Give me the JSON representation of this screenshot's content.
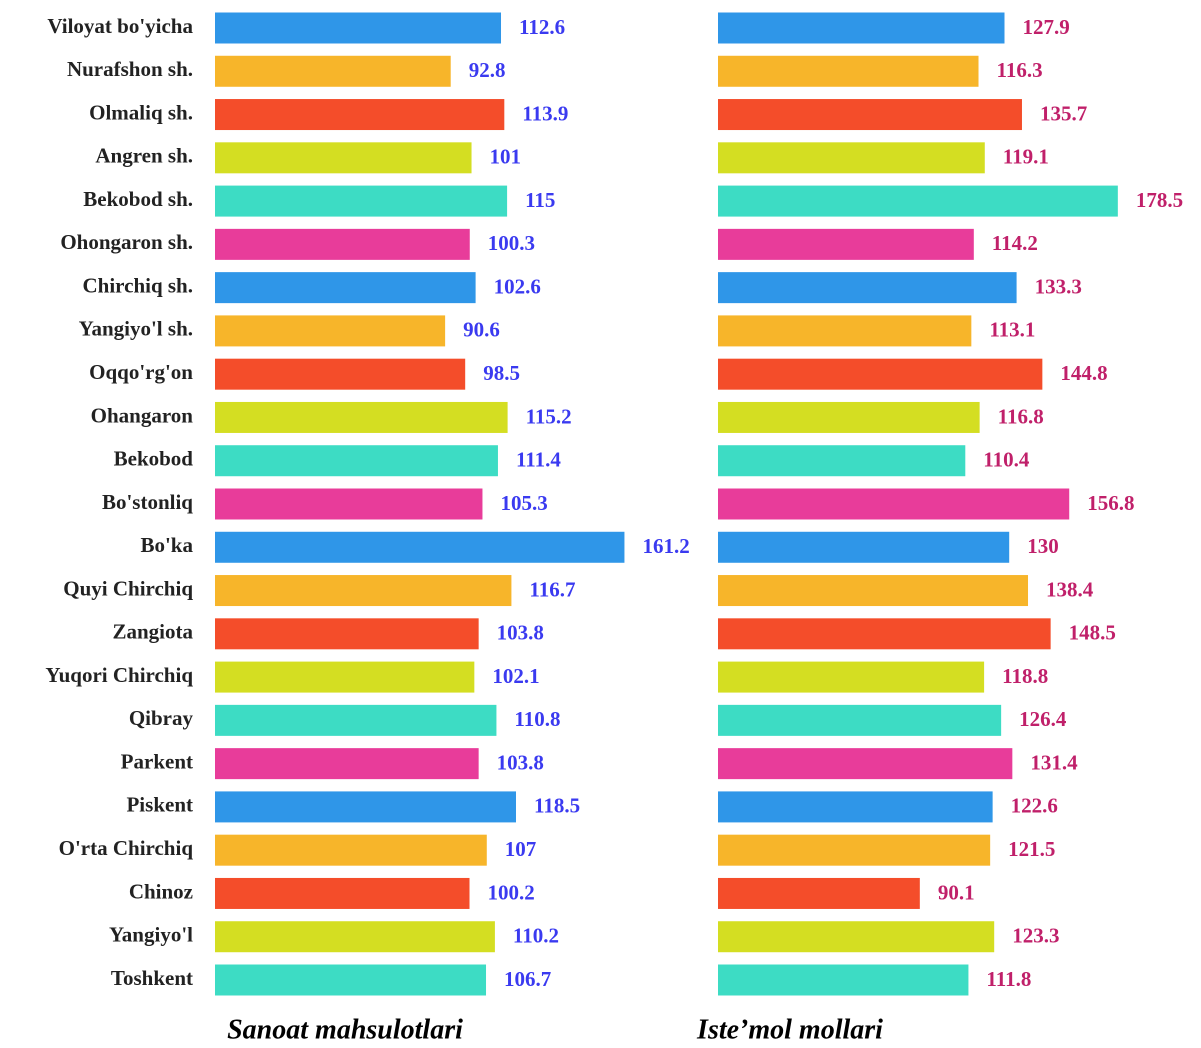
{
  "chart_data": {
    "type": "bar",
    "orientation": "horizontal",
    "categories": [
      "Viloyat bo'yicha",
      "Nurafshon sh.",
      "Olmaliq sh.",
      "Angren sh.",
      "Bekobod sh.",
      "Ohongaron sh.",
      "Chirchiq sh.",
      "Yangiyo'l sh.",
      "Oqqo'rg'on",
      "Ohangaron",
      "Bekobod",
      "Bo'stonliq",
      "Bo'ka",
      "Quyi Chirchiq",
      "Zangiota",
      "Yuqori Chirchiq",
      "Qibray",
      "Parkent",
      "Piskent",
      "O'rta Chirchiq",
      "Chinoz",
      "Yangiyo'l",
      "Toshkent"
    ],
    "colors": [
      "#2f96e8",
      "#f7b52a",
      "#f44d2a",
      "#d4de22",
      "#3ddcc4",
      "#e83c9a",
      "#2f96e8",
      "#f7b52a",
      "#f44d2a",
      "#d4de22",
      "#3ddcc4",
      "#e83c9a",
      "#2f96e8",
      "#f7b52a",
      "#f44d2a",
      "#d4de22",
      "#3ddcc4",
      "#e83c9a",
      "#2f96e8",
      "#f7b52a",
      "#f44d2a",
      "#d4de22",
      "#3ddcc4"
    ],
    "series": [
      {
        "name": "Sanoat mahsulotlari",
        "label_color": "#3a3af0",
        "values": [
          112.6,
          92.8,
          113.9,
          101,
          115,
          100.3,
          102.6,
          90.6,
          98.5,
          115.2,
          111.4,
          105.3,
          161.2,
          116.7,
          103.8,
          102.1,
          110.8,
          103.8,
          118.5,
          107,
          100.2,
          110.2,
          106.7
        ]
      },
      {
        "name": "Iste’mol mollari",
        "label_color": "#c0206a",
        "values": [
          127.9,
          116.3,
          135.7,
          119.1,
          178.5,
          114.2,
          133.3,
          113.1,
          144.8,
          116.8,
          110.4,
          156.8,
          130,
          138.4,
          148.5,
          118.8,
          126.4,
          131.4,
          122.6,
          121.5,
          90.1,
          123.3,
          111.8
        ]
      }
    ]
  }
}
